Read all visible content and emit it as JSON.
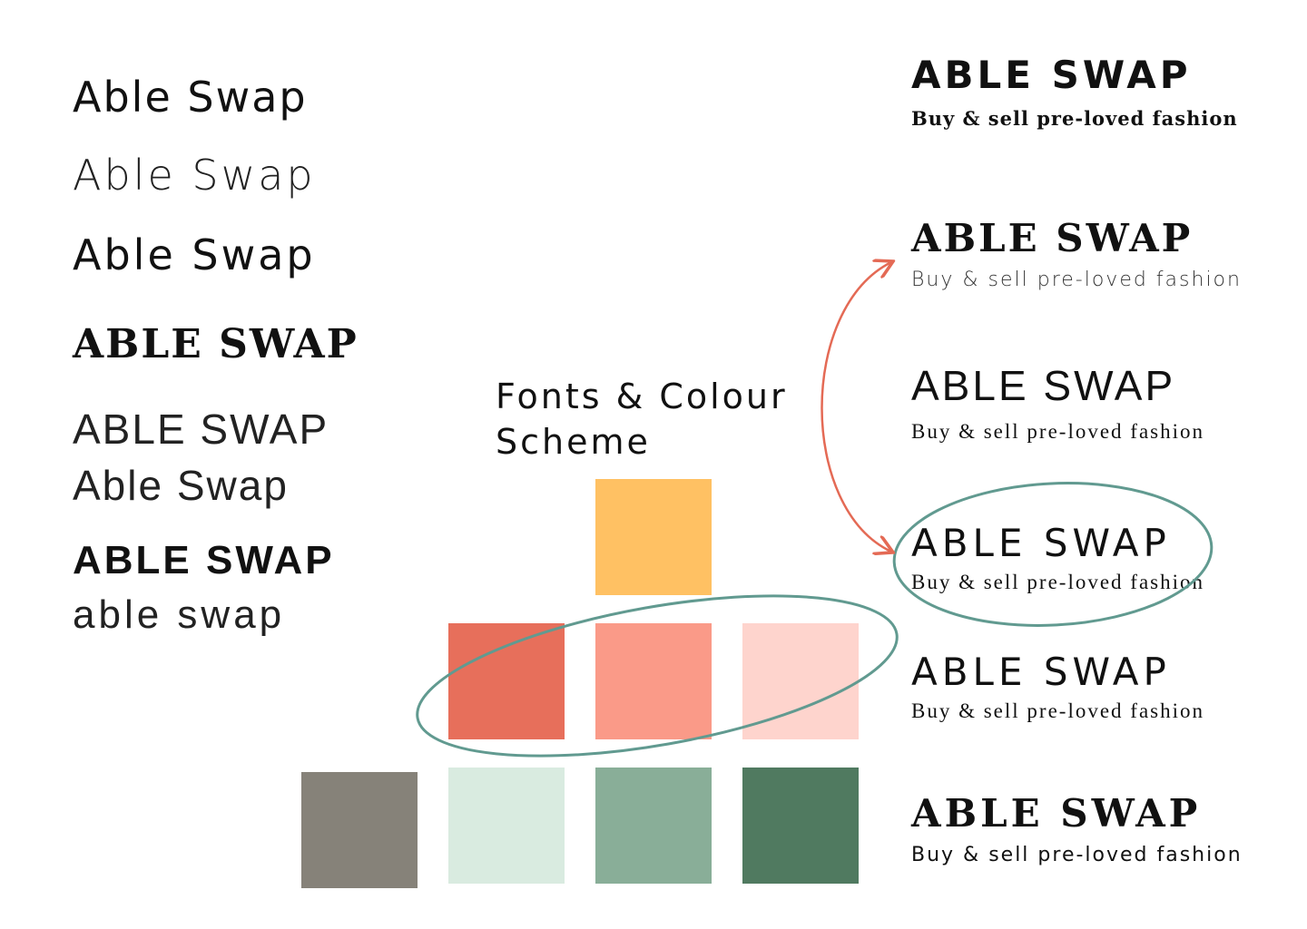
{
  "left_samples": [
    "Able Swap",
    "Able Swap",
    "Able Swap",
    "ABLE SWAP",
    "ABLE SWAP",
    "Able Swap",
    "ABLE SWAP",
    "able swap"
  ],
  "heading": {
    "line1": "Fonts & Colour",
    "line2": "Scheme"
  },
  "palette": {
    "yellow": "#FFC163",
    "coral": "#E76F5B",
    "salmon": "#FA9A88",
    "blush": "#FED4CD",
    "taupe": "#868279",
    "mint": "#D9EBE0",
    "sage": "#89AE98",
    "forest": "#507A60"
  },
  "annotation_colors": {
    "arrow": "#E46A55",
    "ellipse": "#619A90"
  },
  "logos": [
    {
      "title": "ABLE SWAP",
      "subtitle": "Buy & sell pre-loved fashion"
    },
    {
      "title": "ABLE SWAP",
      "subtitle": "Buy & sell pre-loved fashion"
    },
    {
      "title": "ABLE SWAP",
      "subtitle": "Buy & sell pre-loved fashion"
    },
    {
      "title": "ABLE SWAP",
      "subtitle": "Buy & sell pre-loved fashion"
    },
    {
      "title": "ABLE SWAP",
      "subtitle": "Buy & sell pre-loved fashion"
    },
    {
      "title": "ABLE SWAP",
      "subtitle": "Buy & sell pre-loved fashion"
    }
  ]
}
